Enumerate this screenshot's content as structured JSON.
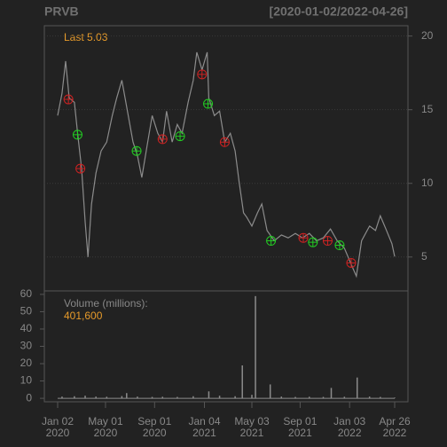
{
  "chart_data": [
    {
      "type": "line",
      "title": "PRVB",
      "subtitle": "[2020-01-02/2022-04-26]",
      "annotation": "Last 5.03",
      "color": "#8c8c8c",
      "annotation_color": "#e69a2a",
      "grid": true,
      "xlim": [
        "2020-01-02",
        "2022-04-26"
      ],
      "ylim": [
        2.7,
        20.7
      ],
      "yticks": [
        5,
        10,
        15,
        20
      ],
      "x": [
        "2020-01-02",
        "2020-01-13",
        "2020-01-22",
        "2020-01-31",
        "2020-02-13",
        "2020-02-21",
        "2020-03-02",
        "2020-03-11",
        "2020-03-18",
        "2020-03-27",
        "2020-04-07",
        "2020-04-20",
        "2020-05-04",
        "2020-05-18",
        "2020-05-29",
        "2020-06-11",
        "2020-06-23",
        "2020-07-09",
        "2020-07-20",
        "2020-07-31",
        "2020-08-13",
        "2020-08-26",
        "2020-09-09",
        "2020-09-21",
        "2020-10-01",
        "2020-10-15",
        "2020-10-28",
        "2020-11-09",
        "2020-11-24",
        "2020-12-07",
        "2020-12-16",
        "2020-12-29",
        "2021-01-11",
        "2021-01-15",
        "2021-01-29",
        "2021-02-11",
        "2021-02-24",
        "2021-03-10",
        "2021-03-22",
        "2021-04-01",
        "2021-04-12",
        "2021-04-20",
        "2021-05-03",
        "2021-05-17",
        "2021-05-28",
        "2021-06-10",
        "2021-06-28",
        "2021-07-16",
        "2021-08-02",
        "2021-08-20",
        "2021-09-07",
        "2021-09-24",
        "2021-10-12",
        "2021-10-29",
        "2021-11-16",
        "2021-12-03",
        "2021-12-21",
        "2022-01-07",
        "2022-01-20",
        "2022-02-02",
        "2022-02-22",
        "2022-03-09",
        "2022-03-21",
        "2022-04-04",
        "2022-04-19",
        "2022-04-26"
      ],
      "values": [
        14.6,
        16.1,
        18.3,
        15.8,
        15.5,
        13.4,
        11.0,
        7.4,
        5.0,
        8.6,
        10.7,
        12.2,
        12.8,
        14.6,
        15.8,
        17.0,
        15.2,
        12.8,
        11.9,
        10.4,
        12.5,
        14.6,
        13.4,
        12.8,
        14.9,
        12.8,
        14.0,
        13.4,
        15.5,
        17.0,
        18.9,
        17.7,
        18.9,
        15.8,
        14.6,
        14.9,
        12.8,
        13.4,
        12.2,
        10.1,
        8.0,
        7.7,
        7.1,
        8.0,
        8.6,
        6.8,
        6.1,
        6.5,
        6.3,
        6.6,
        6.3,
        6.6,
        6.1,
        6.3,
        6.9,
        6.1,
        5.6,
        4.5,
        3.7,
        6.1,
        7.1,
        6.8,
        7.8,
        6.9,
        5.9,
        5.03
      ],
      "markers": [
        {
          "color": "#22cc22",
          "x": [
            "2020-02-21",
            "2020-07-18",
            "2020-11-04",
            "2021-01-13",
            "2021-06-20",
            "2021-10-03",
            "2021-12-09"
          ],
          "values": [
            13.3,
            12.2,
            13.2,
            15.4,
            6.1,
            6.0,
            5.8
          ]
        },
        {
          "color": "#cc2222",
          "x": [
            "2020-01-29",
            "2020-02-28",
            "2020-09-21",
            "2020-12-29",
            "2021-02-24",
            "2021-09-09",
            "2021-11-09",
            "2022-01-07"
          ],
          "values": [
            15.7,
            11.0,
            13.0,
            17.4,
            12.8,
            6.3,
            6.1,
            4.6
          ]
        }
      ]
    },
    {
      "type": "volume",
      "title": "Volume (millions):",
      "annotation": "401,600",
      "color": "#8c8c8c",
      "annotation_color": "#e69a2a",
      "xlim": [
        "2020-01-02",
        "2022-04-26"
      ],
      "ylim": [
        -2,
        62
      ],
      "yticks": [
        0,
        10,
        20,
        30,
        40,
        50,
        60
      ],
      "xticks": [
        {
          "value": "2020-01-02",
          "label": "Jan 02\n2020"
        },
        {
          "value": "2020-05-01",
          "label": "May 01\n2020"
        },
        {
          "value": "2020-09-01",
          "label": "Sep 01\n2020"
        },
        {
          "value": "2021-01-04",
          "label": "Jan 04\n2021"
        },
        {
          "value": "2021-05-03",
          "label": "May 03\n2021"
        },
        {
          "value": "2021-09-01",
          "label": "Sep 01\n2021"
        },
        {
          "value": "2022-01-03",
          "label": "Jan 03\n2022"
        },
        {
          "value": "2022-04-26",
          "label": "Apr 26\n2022"
        }
      ],
      "x": [
        "2020-01-13",
        "2020-02-13",
        "2020-03-11",
        "2020-04-07",
        "2020-05-04",
        "2020-06-11",
        "2020-06-23",
        "2020-07-20",
        "2020-08-26",
        "2020-09-21",
        "2020-10-28",
        "2020-12-07",
        "2021-01-15",
        "2021-02-11",
        "2021-03-22",
        "2021-04-09",
        "2021-05-03",
        "2021-05-12",
        "2021-06-18",
        "2021-07-16",
        "2021-08-20",
        "2021-09-24",
        "2021-10-29",
        "2021-11-18",
        "2021-12-21",
        "2022-01-22",
        "2022-02-22",
        "2022-03-21",
        "2022-04-26"
      ],
      "values": [
        1.0,
        1.2,
        1.5,
        1.0,
        0.9,
        1.3,
        3.0,
        1.0,
        0.8,
        0.9,
        0.8,
        1.2,
        4.0,
        1.5,
        1.2,
        19.0,
        2.0,
        59.0,
        8.0,
        1.0,
        0.8,
        0.9,
        0.8,
        6.0,
        0.9,
        12.0,
        1.0,
        0.8,
        0.4
      ]
    }
  ]
}
